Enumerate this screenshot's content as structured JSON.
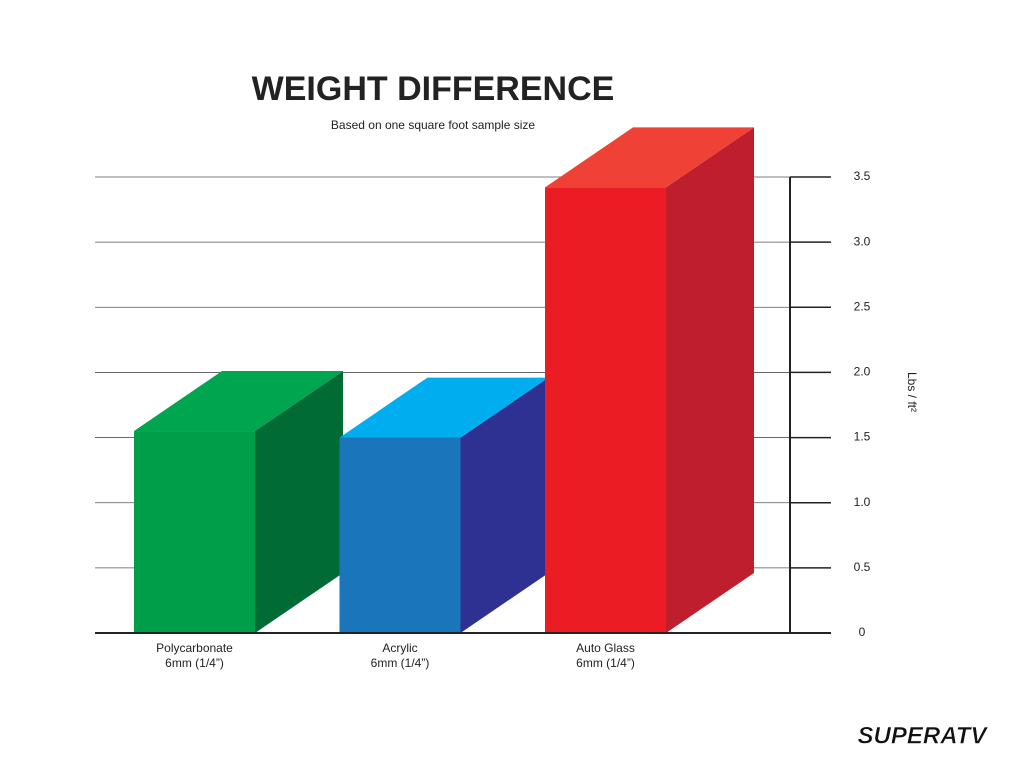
{
  "chart_data": {
    "type": "bar3d",
    "title": "WEIGHT DIFFERENCE",
    "subtitle": "Based on one square foot sample size",
    "categories": [
      "Polycarbonate\n6mm (1/4”)",
      "Acrylic\n6mm (1/4”)",
      "Auto Glass\n6mm (1/4”)"
    ],
    "values": [
      1.55,
      1.5,
      3.42
    ],
    "colors": [
      "#009e49",
      "#1b75bb",
      "#ec1c24"
    ],
    "top_colors": [
      "#00a550",
      "#00aeef",
      "#ef4136"
    ],
    "side_colors": [
      "#006b35",
      "#2e3192",
      "#be1e2d"
    ],
    "y_label": "Lbs / ft²",
    "ylim": [
      0,
      3.5
    ],
    "yticks": [
      0,
      0.5,
      {
        "value": 1,
        "label": "1.0"
      },
      1.5,
      {
        "value": 2,
        "label": "2.0"
      },
      2.5,
      {
        "value": 3,
        "label": "3.0"
      },
      3.5
    ],
    "grid": true,
    "brand": "SUPERATV"
  }
}
